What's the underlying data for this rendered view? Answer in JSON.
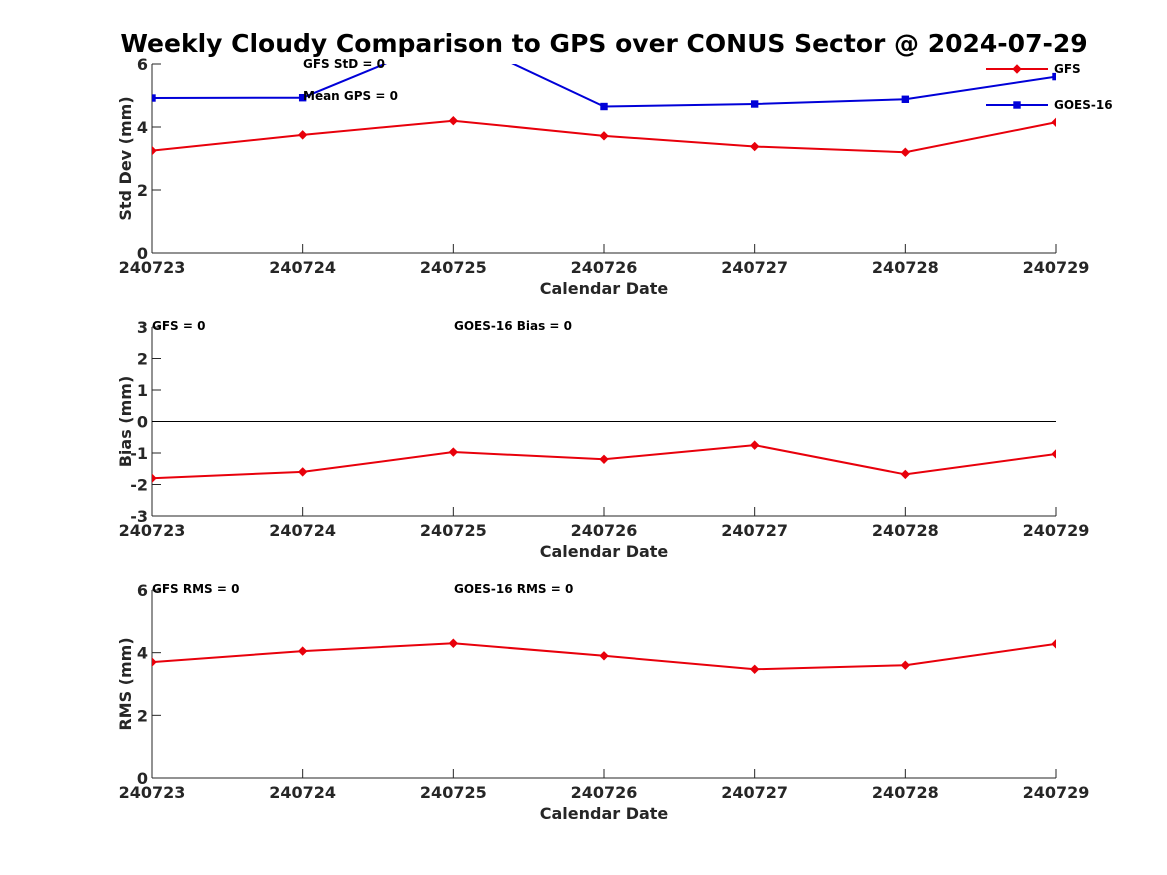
{
  "figure_title": "Weekly Cloudy Comparison to GPS over CONUS Sector @ 2024-07-29",
  "colors": {
    "gfs": "#e8000b",
    "goes16": "#0000d8",
    "axis": "#262626",
    "zero_line": "#000000"
  },
  "chart_data": [
    {
      "type": "line",
      "panel": "std-dev",
      "xlabel": "Calendar Date",
      "ylabel": "Std Dev (mm)",
      "categories": [
        "240723",
        "240724",
        "240725",
        "240726",
        "240727",
        "240728",
        "240729"
      ],
      "ylim": [
        0,
        6
      ],
      "yticks": [
        "0",
        "2",
        "4",
        "6"
      ],
      "series": [
        {
          "name": "GFS",
          "color_key": "gfs",
          "marker": "diamond",
          "values": [
            3.25,
            3.75,
            4.2,
            3.72,
            3.38,
            3.2,
            4.15
          ]
        },
        {
          "name": "GOES-16",
          "color_key": "goes16",
          "marker": "square",
          "values": [
            4.92,
            4.93,
            6.9,
            4.65,
            4.73,
            4.88,
            5.6
          ]
        }
      ],
      "legend": {
        "placement": "top-right",
        "entries": [
          "GFS",
          "GOES-16"
        ]
      },
      "annotations": [
        "GFS StD = 0",
        "Mean GPS = 0"
      ]
    },
    {
      "type": "line",
      "panel": "bias",
      "xlabel": "Calendar Date",
      "ylabel": "Bias (mm)",
      "categories": [
        "240723",
        "240724",
        "240725",
        "240726",
        "240727",
        "240728",
        "240729"
      ],
      "ylim": [
        -3,
        3
      ],
      "yticks": [
        "-3",
        "-2",
        "-1",
        "0",
        "1",
        "2",
        "3"
      ],
      "reference_line": 0,
      "series": [
        {
          "name": "GFS",
          "color_key": "gfs",
          "marker": "diamond",
          "values": [
            -1.8,
            -1.6,
            -0.97,
            -1.2,
            -0.75,
            -1.68,
            -1.03
          ]
        }
      ],
      "annotations": [
        "GFS = 0",
        "GOES-16 Bias  = 0"
      ]
    },
    {
      "type": "line",
      "panel": "rms",
      "xlabel": "Calendar Date",
      "ylabel": "RMS (mm)",
      "categories": [
        "240723",
        "240724",
        "240725",
        "240726",
        "240727",
        "240728",
        "240729"
      ],
      "ylim": [
        0,
        6
      ],
      "yticks": [
        "0",
        "2",
        "4",
        "6"
      ],
      "series": [
        {
          "name": "GFS",
          "color_key": "gfs",
          "marker": "diamond",
          "values": [
            3.7,
            4.05,
            4.3,
            3.9,
            3.47,
            3.6,
            4.28
          ]
        }
      ],
      "annotations": [
        "GFS RMS = 0",
        "GOES-16 RMS = 0"
      ]
    }
  ]
}
